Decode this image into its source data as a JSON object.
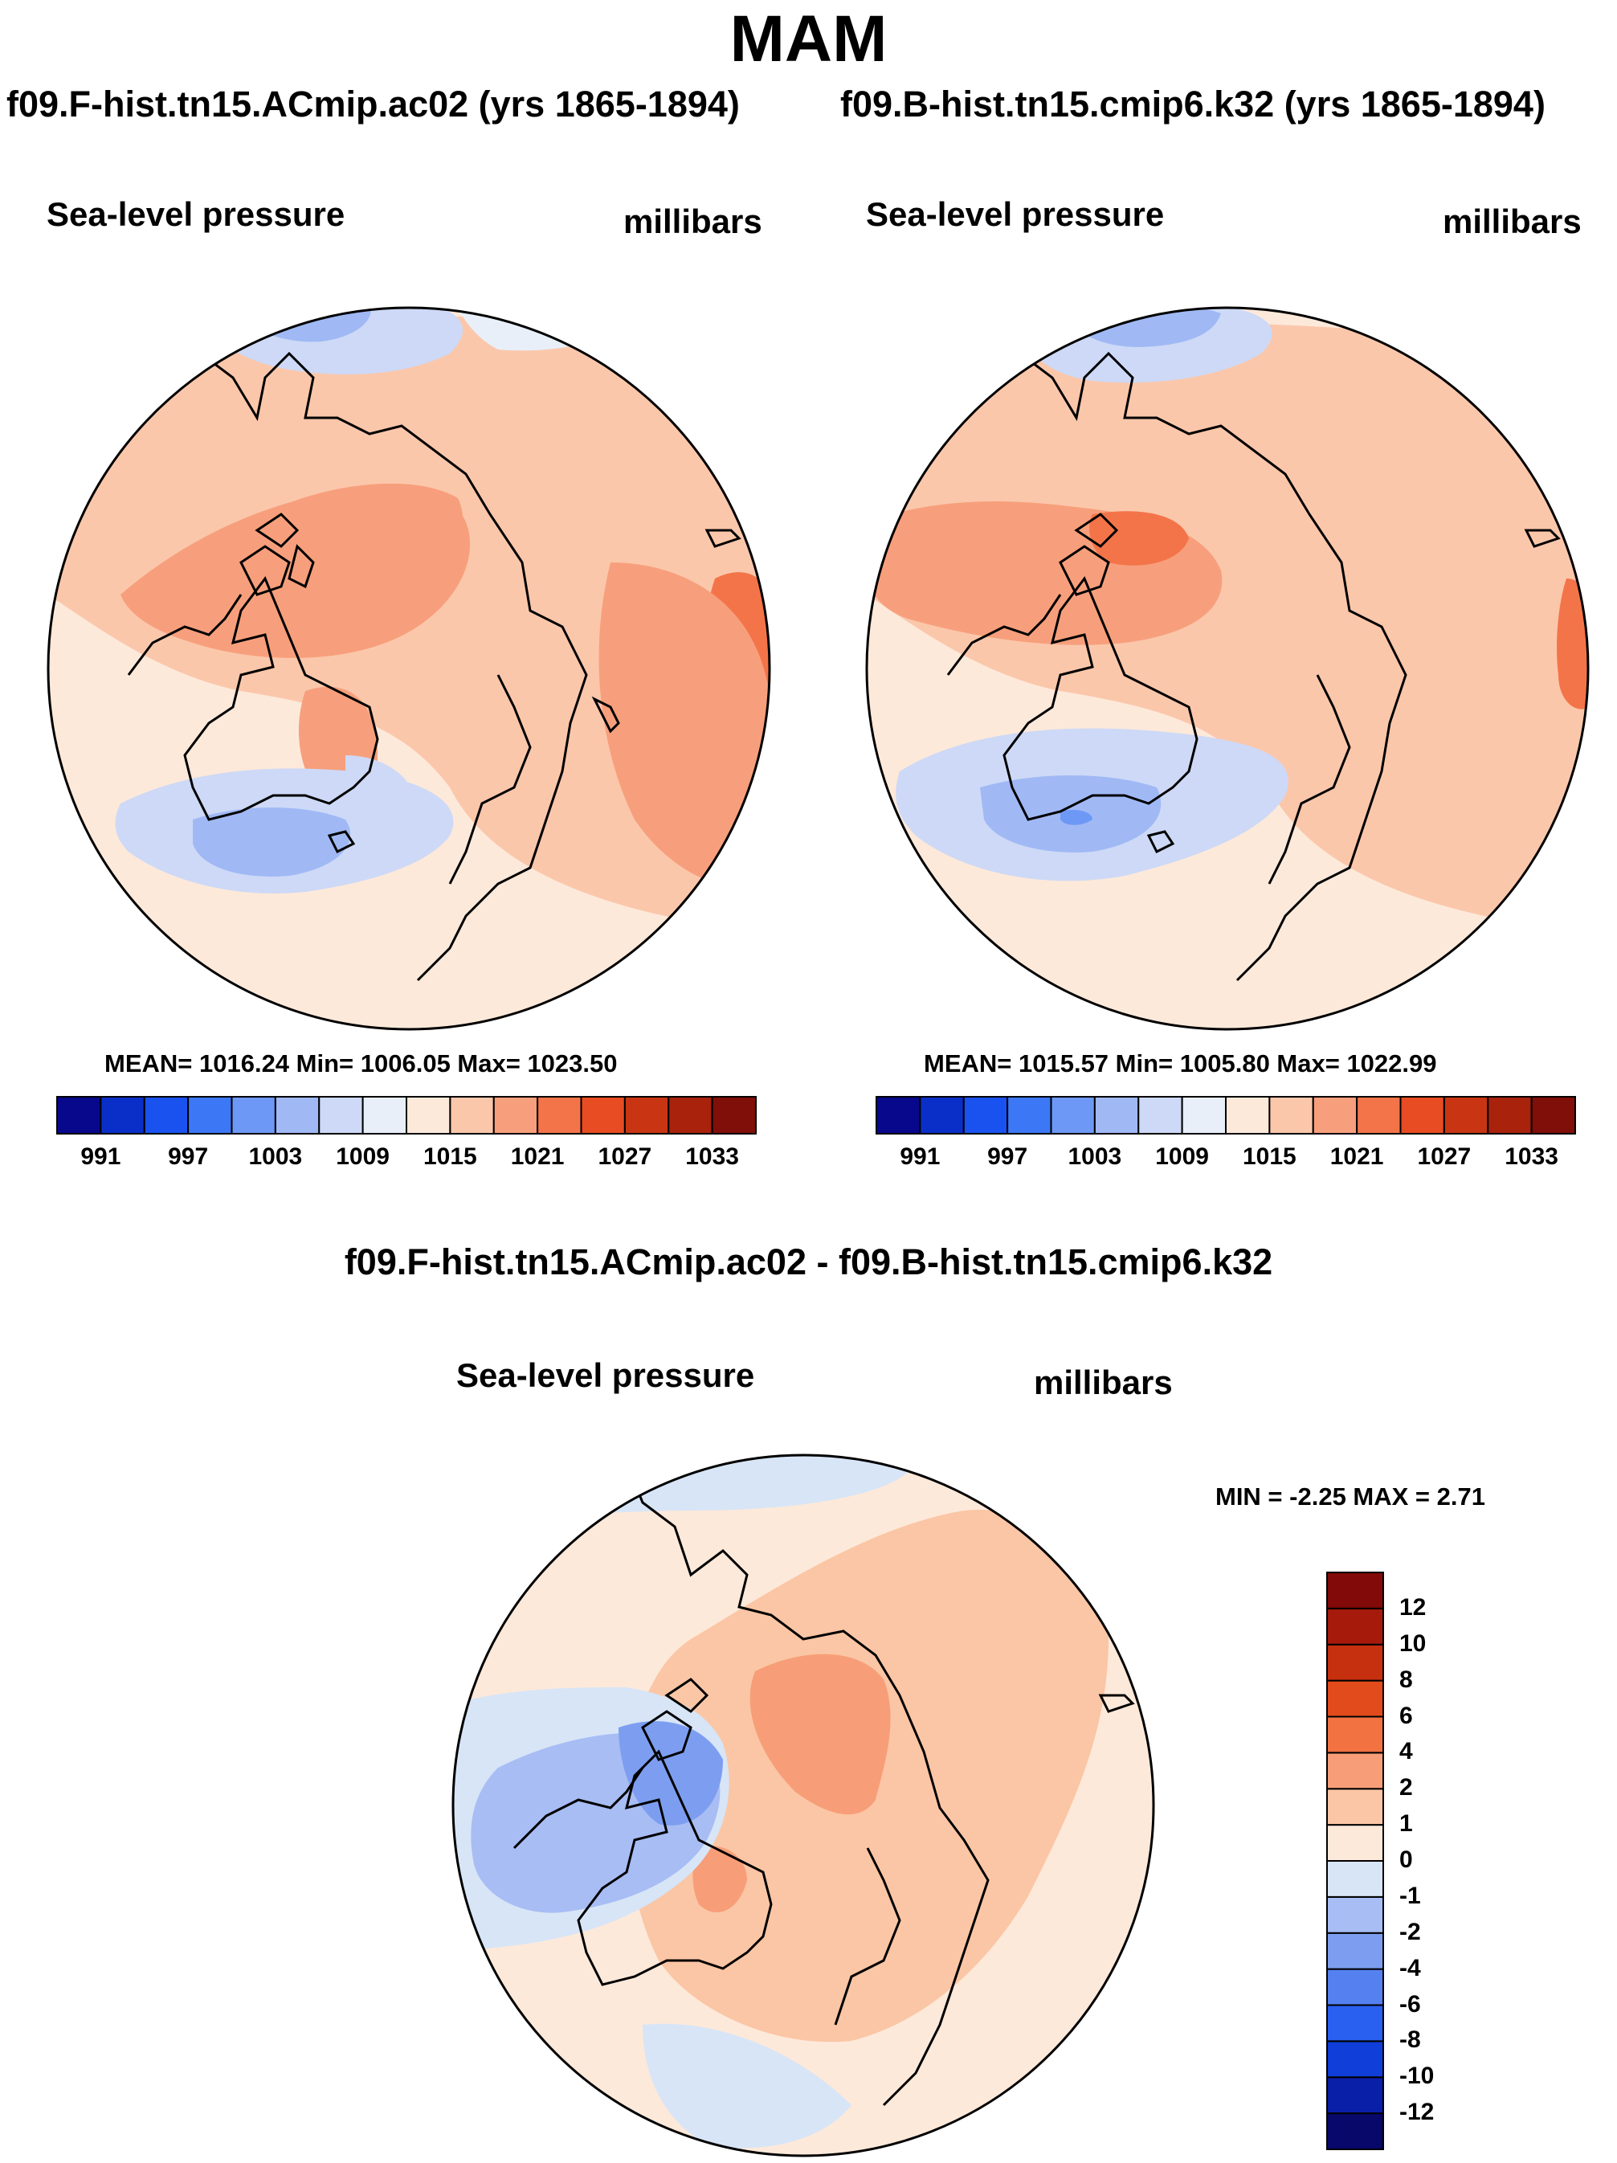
{
  "season": "MAM",
  "panels": {
    "left": {
      "title": "f09.F-hist.tn15.ACmip.ac02 (yrs 1865-1894)",
      "variable": "Sea-level pressure",
      "units": "millibars",
      "stats": "MEAN= 1016.24  Min= 1006.05  Max= 1023.50"
    },
    "right": {
      "title": "f09.B-hist.tn15.cmip6.k32 (yrs 1865-1894)",
      "variable": "Sea-level pressure",
      "units": "millibars",
      "stats": "MEAN= 1015.57  Min= 1005.80  Max= 1022.99"
    },
    "diff": {
      "title": "f09.F-hist.tn15.ACmip.ac02 - f09.B-hist.tn15.cmip6.k32",
      "variable": "Sea-level pressure",
      "units": "millibars",
      "stats": "MIN =  -2.25 MAX =   2.71"
    }
  },
  "abs_colorbar": {
    "colors": [
      "#08088c",
      "#0a2fc9",
      "#1a52f0",
      "#3c78f5",
      "#6e98f5",
      "#a0b9f5",
      "#cdd9f6",
      "#e8eff9",
      "#fde9da",
      "#fbc7ab",
      "#f79f7c",
      "#f47449",
      "#e84c22",
      "#c93512",
      "#a8220c",
      "#7f0f08"
    ],
    "ticks": [
      "991",
      "997",
      "1003",
      "1009",
      "1015",
      "1021",
      "1027",
      "1033"
    ]
  },
  "diff_colorbar": {
    "colors": [
      "#08086b",
      "#0a1fa8",
      "#0f3ed8",
      "#2a60f0",
      "#5580f0",
      "#7d9ef0",
      "#a8bdf4",
      "#d7e5f7",
      "#fde9da",
      "#fbc6a5",
      "#f79e78",
      "#f27242",
      "#e24b1c",
      "#c7300f",
      "#a51a0b",
      "#820a08"
    ],
    "labels": [
      "12",
      "10",
      "8",
      "6",
      "4",
      "2",
      "1",
      "0",
      "-1",
      "-2",
      "-4",
      "-6",
      "-8",
      "-10",
      "-12"
    ]
  }
}
